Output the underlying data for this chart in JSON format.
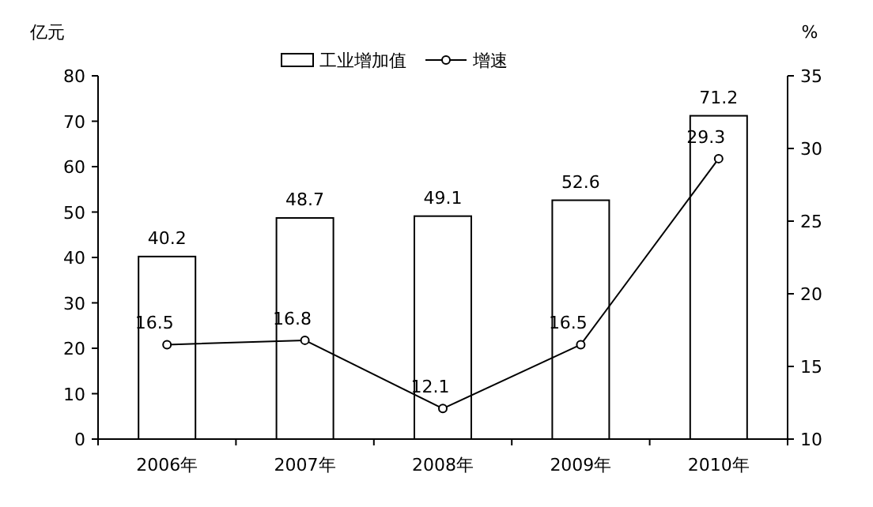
{
  "chart_data": {
    "type": "bar",
    "categories": [
      "2006年",
      "2007年",
      "2008年",
      "2009年",
      "2010年"
    ],
    "series": [
      {
        "name": "工业增加值",
        "color": "#ffffff",
        "values": [
          40.2,
          48.7,
          49.1,
          52.6,
          71.2
        ]
      },
      {
        "name": "增速",
        "type": "line",
        "axis": "y2",
        "color": "#000000",
        "marker": "circle",
        "values": [
          16.5,
          16.8,
          12.1,
          16.5,
          29.3
        ]
      }
    ],
    "ylabel": "亿元",
    "y2label": "%",
    "ylim": [
      0,
      80
    ],
    "yticks": [
      0,
      10,
      20,
      30,
      40,
      50,
      60,
      70,
      80
    ],
    "y2lim": [
      10,
      35
    ],
    "y2ticks": [
      10,
      15,
      20,
      25,
      30,
      35
    ],
    "legend": "top",
    "data_labels": true
  }
}
